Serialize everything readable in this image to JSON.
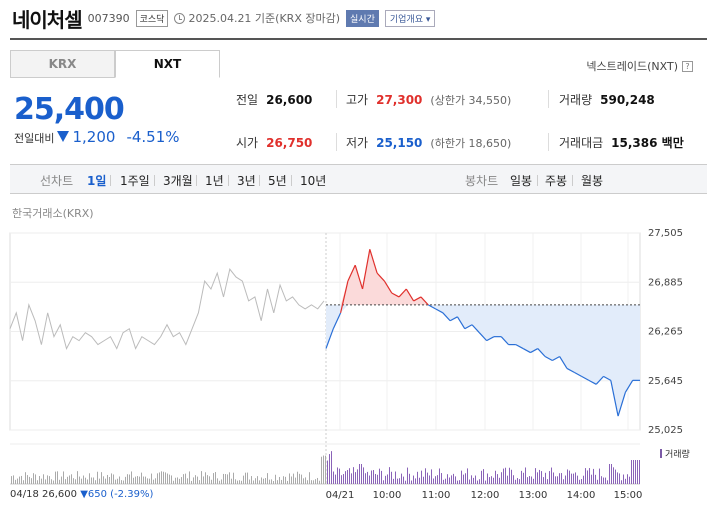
{
  "header": {
    "name": "네이처셀",
    "code": "007390",
    "market": "코스닥",
    "date_basis": "2025.04.21 기준(KRX 장마감)",
    "realtime": "실시간",
    "company_info": "기업개요"
  },
  "tabs": [
    {
      "label": "KRX",
      "active": false
    },
    {
      "label": "NXT",
      "active": true
    }
  ],
  "nxt_link": "넥스트레이드(NXT)",
  "quote": {
    "price": "25,400",
    "change_label": "전일대비",
    "change": "1,200",
    "change_pct": "-4.51%"
  },
  "stats": {
    "prev_label": "전일",
    "prev": "26,600",
    "high_label": "고가",
    "high": "27,300",
    "upper_limit": "(상한가 34,550)",
    "volume_label": "거래량",
    "volume": "590,248",
    "open_label": "시가",
    "open": "26,750",
    "low_label": "저가",
    "low": "25,150",
    "lower_limit": "(하한가 18,650)",
    "amount_label": "거래대금",
    "amount": "15,386 백만"
  },
  "period_bar": {
    "line_label": "선차트",
    "periods": [
      "1일",
      "1주일",
      "3개월",
      "1년",
      "3년",
      "5년",
      "10년"
    ],
    "selected": "1일",
    "candle_label": "봉차트",
    "candles": [
      "일봉",
      "주봉",
      "월봉"
    ]
  },
  "exchange_label": "한국거래소(KRX)",
  "chart_data": {
    "type": "line",
    "y_ticks": [
      "27,505",
      "26,885",
      "26,265",
      "25,645",
      "25,025"
    ],
    "ylim": [
      25025,
      27505
    ],
    "x_ticks": [
      "04/21",
      "10:00",
      "11:00",
      "12:00",
      "13:00",
      "14:00",
      "15:00"
    ],
    "reference_price": 26600,
    "prev_day": {
      "name": "04/18",
      "values": [
        26300,
        26500,
        26150,
        26600,
        26400,
        26100,
        26500,
        26200,
        26350,
        26050,
        26200,
        26150,
        26250,
        26200,
        26100,
        26150,
        26200,
        26050,
        26250,
        26300,
        26050,
        26200,
        26150,
        26100,
        26200,
        26350,
        26200,
        26250,
        26100,
        26300,
        26500,
        26900,
        26800,
        27000,
        26700,
        27050,
        26950,
        26900,
        26650,
        26700,
        26400,
        26800,
        26500,
        26850,
        26650,
        26700,
        26600,
        26550,
        26600,
        26550,
        26650
      ]
    },
    "today": {
      "name": "04/21",
      "values": [
        26050,
        26300,
        26500,
        26900,
        27100,
        26800,
        27300,
        27000,
        26900,
        26750,
        26700,
        26800,
        26650,
        26700,
        26600,
        26550,
        26500,
        26400,
        26450,
        26300,
        26350,
        26250,
        26150,
        26200,
        26200,
        26100,
        26100,
        26050,
        26000,
        26050,
        25950,
        25900,
        25950,
        25800,
        25750,
        25700,
        25650,
        25600,
        25700,
        25650,
        25200,
        25500,
        25650,
        25650
      ]
    },
    "volume_label": "거래량"
  },
  "footer": {
    "date": "04/18",
    "price": "26,600",
    "change": "▼650",
    "pct": "(-2.39%)"
  }
}
